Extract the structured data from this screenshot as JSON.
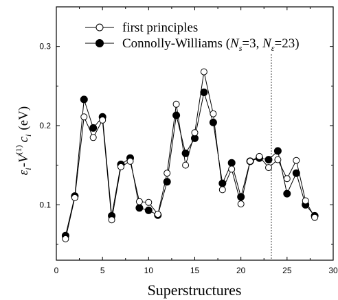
{
  "chart_data": {
    "type": "line",
    "xlabel": "Superstructures",
    "ylabel": "εi-V(1)ci (eV)",
    "xlim": [
      0,
      30
    ],
    "ylim": [
      0.03,
      0.35
    ],
    "x_ticks": [
      0,
      5,
      10,
      15,
      20,
      25,
      30
    ],
    "x_tick_labels": [
      "0",
      "5",
      "10",
      "15",
      "20",
      "25",
      "30"
    ],
    "y_ticks": [
      0.1,
      0.2,
      0.3
    ],
    "y_tick_labels": [
      "0.1",
      "0.2",
      "0.3"
    ],
    "vertical_reference_line_x": 23.3,
    "legend_position": "top-left",
    "grid": false,
    "x": [
      1,
      2,
      3,
      4,
      5,
      6,
      7,
      8,
      9,
      10,
      11,
      12,
      13,
      14,
      15,
      16,
      17,
      18,
      19,
      20,
      21,
      22,
      23,
      24,
      25,
      26,
      27,
      28
    ],
    "series": [
      {
        "name": "first principles",
        "marker": "open-circle",
        "values": [
          0.057,
          0.109,
          0.211,
          0.185,
          0.207,
          0.081,
          0.148,
          0.155,
          0.104,
          0.103,
          0.088,
          0.14,
          0.227,
          0.15,
          0.191,
          0.268,
          0.215,
          0.119,
          0.145,
          0.101,
          0.155,
          0.161,
          0.147,
          0.157,
          0.133,
          0.156,
          0.105,
          0.084
        ]
      },
      {
        "name": "Connolly-Williams (Ns=3, Nε=23)",
        "marker": "filled-circle",
        "values": [
          0.061,
          0.111,
          0.233,
          0.197,
          0.211,
          0.086,
          0.151,
          0.159,
          0.096,
          0.093,
          0.087,
          0.129,
          0.213,
          0.165,
          0.184,
          0.242,
          0.204,
          0.127,
          0.153,
          0.11,
          0.155,
          0.159,
          0.157,
          0.168,
          0.114,
          0.14,
          0.1,
          0.086
        ]
      }
    ]
  }
}
